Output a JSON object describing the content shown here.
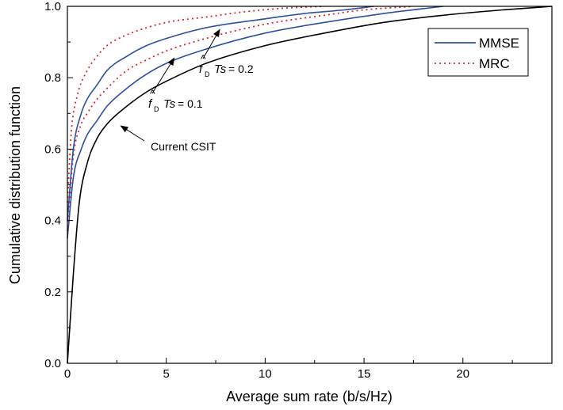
{
  "chart_data": {
    "type": "line",
    "title": "",
    "xlabel": "Average sum rate (b/s/Hz)",
    "ylabel": "Cumulative distribution function",
    "xlim": [
      0,
      24.5
    ],
    "ylim": [
      0,
      1.0
    ],
    "x_ticks": [
      0,
      5,
      10,
      15,
      20
    ],
    "x_tick_labels": [
      "0",
      "5",
      "10",
      "15",
      "20"
    ],
    "y_ticks": [
      0.0,
      0.2,
      0.4,
      0.6,
      0.8,
      1.0
    ],
    "y_tick_labels": [
      "0.0",
      "0.2",
      "0.4",
      "0.6",
      "0.8",
      "1.0"
    ],
    "grid": false,
    "legend_position": "top-right",
    "legend": [
      {
        "name": "MMSE",
        "color": "#2c4fa0",
        "style": "solid"
      },
      {
        "name": "MRC",
        "color": "#e0242a",
        "style": "dotted"
      }
    ],
    "series": [
      {
        "name": "Current CSIT",
        "color": "#000000",
        "style": "solid",
        "x": [
          0,
          0.3,
          0.6,
          1.0,
          1.5,
          2.0,
          3.0,
          4.0,
          5.0,
          7.0,
          10.0,
          13.0,
          16.0,
          19.0,
          22.0,
          24.5
        ],
        "y": [
          0.0,
          0.25,
          0.45,
          0.56,
          0.63,
          0.67,
          0.72,
          0.76,
          0.79,
          0.84,
          0.89,
          0.925,
          0.955,
          0.975,
          0.99,
          1.0
        ]
      },
      {
        "name": "MMSE, f_D Ts = 0.1",
        "color": "#2c4fa0",
        "style": "solid",
        "x": [
          0,
          0.3,
          0.7,
          1.0,
          1.5,
          2.0,
          3.0,
          4.0,
          5.0,
          7.0,
          10.0,
          13.0,
          16.0,
          19.0
        ],
        "y": [
          0.35,
          0.52,
          0.6,
          0.64,
          0.68,
          0.72,
          0.77,
          0.81,
          0.84,
          0.88,
          0.925,
          0.955,
          0.98,
          1.0
        ]
      },
      {
        "name": "MRC, f_D Ts = 0.1",
        "color": "#e0242a",
        "style": "dotted",
        "x": [
          0,
          0.3,
          0.7,
          1.0,
          1.5,
          2.0,
          3.0,
          4.0,
          5.0,
          7.0,
          10.0,
          13.0,
          15.0,
          17.5
        ],
        "y": [
          0.37,
          0.58,
          0.67,
          0.7,
          0.74,
          0.77,
          0.82,
          0.85,
          0.875,
          0.91,
          0.95,
          0.975,
          0.99,
          1.0
        ]
      },
      {
        "name": "MMSE, f_D Ts = 0.2",
        "color": "#2c4fa0",
        "style": "solid",
        "x": [
          0,
          0.3,
          0.7,
          1.0,
          1.5,
          2.0,
          3.0,
          4.0,
          5.0,
          7.0,
          10.0,
          12.0,
          14.0,
          15.5
        ],
        "y": [
          0.4,
          0.6,
          0.7,
          0.74,
          0.78,
          0.82,
          0.86,
          0.89,
          0.91,
          0.94,
          0.965,
          0.98,
          0.99,
          1.0
        ]
      },
      {
        "name": "MRC, f_D Ts = 0.2",
        "color": "#e0242a",
        "style": "dotted",
        "x": [
          0,
          0.2,
          0.5,
          1.0,
          1.5,
          2.0,
          3.0,
          4.0,
          5.0,
          7.0,
          9.0,
          11.0,
          13.0
        ],
        "y": [
          0.45,
          0.65,
          0.75,
          0.82,
          0.86,
          0.89,
          0.92,
          0.94,
          0.955,
          0.97,
          0.985,
          0.995,
          1.0
        ]
      }
    ],
    "annotations": [
      {
        "text": "Current  CSIT",
        "arrow_to": [
          2.7,
          0.665
        ]
      },
      {
        "sym": "f",
        "sub": "D",
        "rest": "Ts",
        "eq": "= 0.1",
        "arrow_to": [
          5.4,
          0.855
        ]
      },
      {
        "sym": "f",
        "sub": "D",
        "rest": "Ts",
        "eq": "= 0.2",
        "arrow_to": [
          7.7,
          0.935
        ]
      }
    ]
  }
}
